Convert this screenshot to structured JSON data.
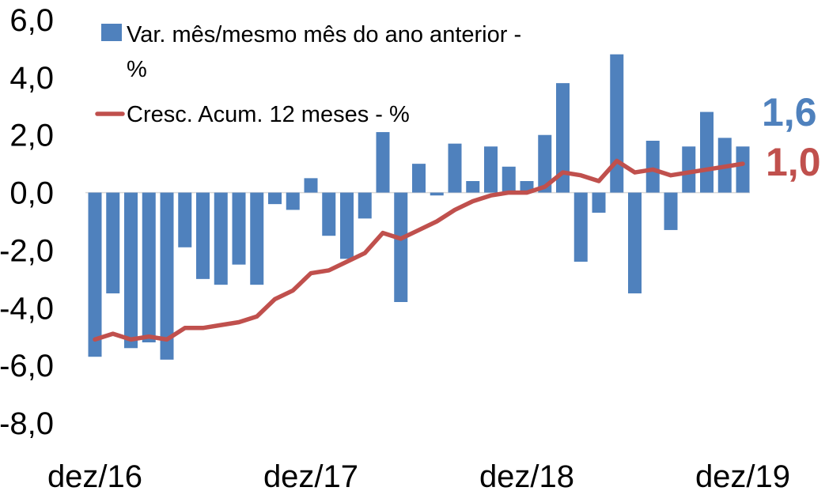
{
  "chart_data": {
    "type": "bar",
    "colors": {
      "bar": "#4F81BD",
      "line": "#C0504D"
    },
    "y_ticks": [
      "6,0",
      "4,0",
      "2,0",
      "0,0",
      "-2,0",
      "-4,0",
      "-6,0",
      "-8,0"
    ],
    "ylim": [
      -8,
      6
    ],
    "x_tick_labels": [
      {
        "label": "dez/16",
        "index": 0
      },
      {
        "label": "dez/17",
        "index": 12
      },
      {
        "label": "dez/18",
        "index": 24
      },
      {
        "label": "dez/19",
        "index": 36
      }
    ],
    "series": [
      {
        "name": "Var. mês/mesmo mês do ano anterior - %",
        "type": "bar",
        "values": [
          -5.7,
          -3.5,
          -5.4,
          -5.2,
          -5.8,
          -1.9,
          -3.0,
          -3.2,
          -2.5,
          -3.2,
          -0.4,
          -0.6,
          0.5,
          -1.5,
          -2.3,
          -0.9,
          2.1,
          -3.8,
          1.0,
          -0.1,
          1.7,
          0.4,
          1.6,
          0.9,
          0.4,
          2.0,
          3.8,
          -2.4,
          -0.7,
          4.8,
          -3.5,
          1.8,
          -1.3,
          1.6,
          2.8,
          1.9,
          1.6
        ]
      },
      {
        "name": "Cresc. Acum. 12 meses - %",
        "type": "line",
        "values": [
          -5.1,
          -4.9,
          -5.1,
          -5.0,
          -5.1,
          -4.7,
          -4.7,
          -4.6,
          -4.5,
          -4.3,
          -3.7,
          -3.4,
          -2.8,
          -2.7,
          -2.4,
          -2.1,
          -1.4,
          -1.6,
          -1.3,
          -1.0,
          -0.6,
          -0.3,
          -0.1,
          0.0,
          0.0,
          0.2,
          0.7,
          0.6,
          0.4,
          1.1,
          0.7,
          0.8,
          0.6,
          0.7,
          0.8,
          0.9,
          1.0
        ]
      }
    ],
    "end_labels": [
      {
        "text": "1,6",
        "color": "#4F81BD"
      },
      {
        "text": "1,0",
        "color": "#C0504D"
      }
    ]
  }
}
